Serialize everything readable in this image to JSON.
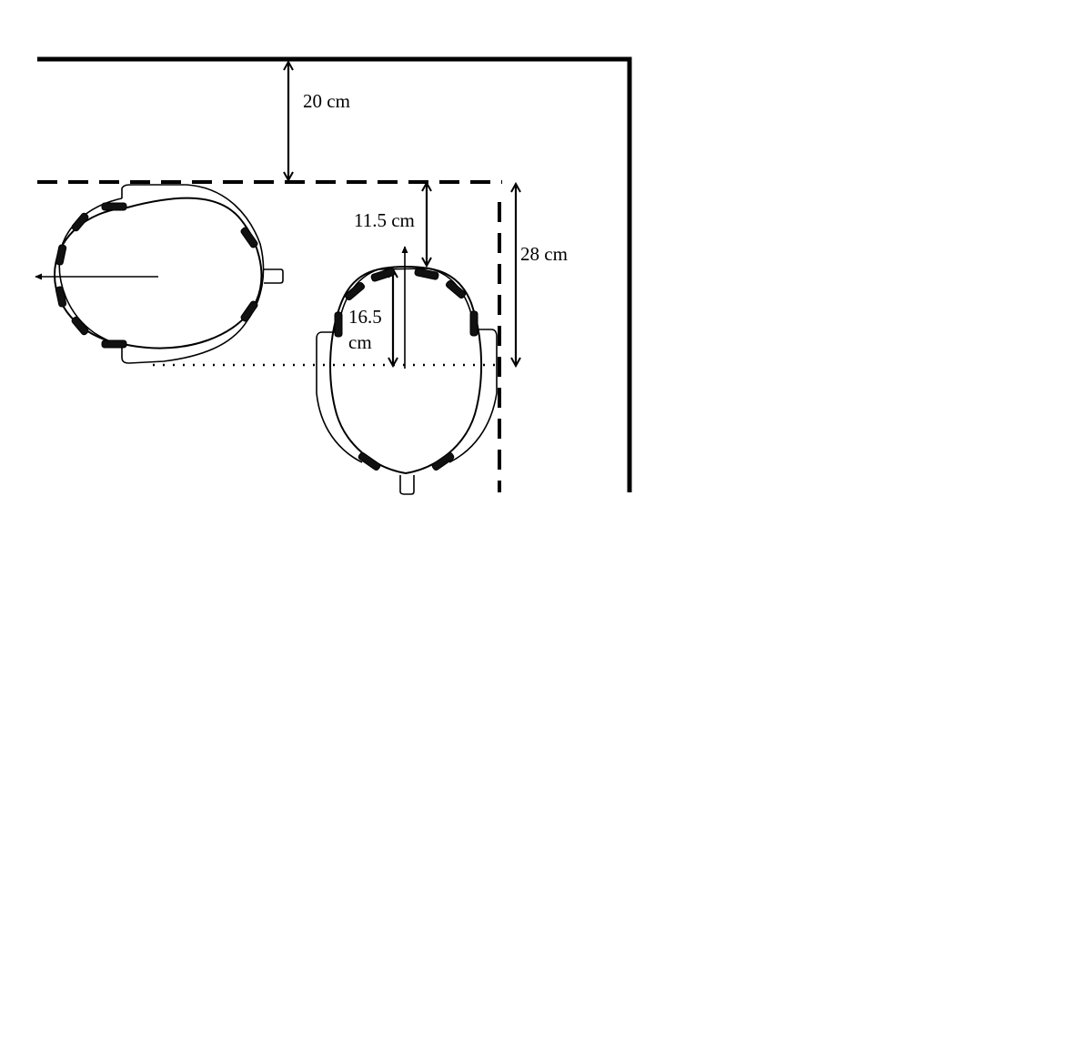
{
  "labels": {
    "wall_gap": "20 cm",
    "top_gap": "11.5 cm",
    "head_depth_line1": "16.5",
    "head_depth_line2": "cm",
    "side_gap": "28 cm"
  },
  "colors": {
    "ink": "#000000",
    "background": "#ffffff"
  }
}
